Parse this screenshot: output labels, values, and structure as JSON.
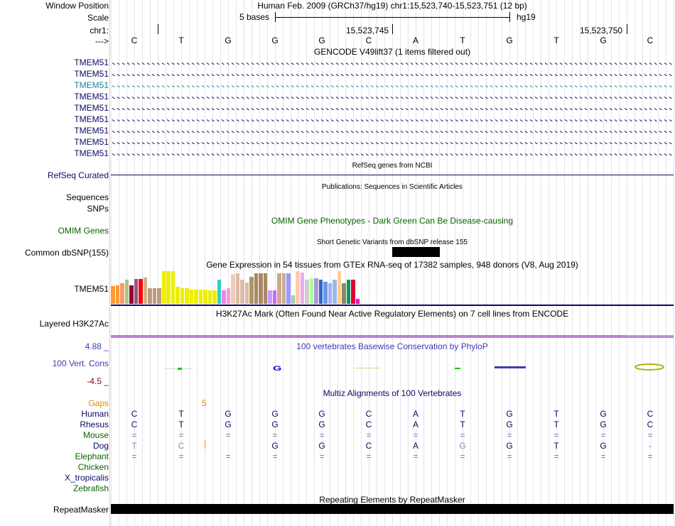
{
  "header": {
    "window_position_label": "Window Position",
    "window_position_value": "Human Feb. 2009 (GRCh37/hg19)   chr1:15,523,740-15,523,751 (12 bp)",
    "scale_label": "Scale",
    "scale_text": "5 bases",
    "scale_assembly": "hg19",
    "chr_label": "chr1:",
    "coord_1": "15,523,745",
    "coord_2": "15,523,750",
    "strand_label": "--->"
  },
  "bases": [
    "C",
    "T",
    "G",
    "G",
    "G",
    "C",
    "A",
    "T",
    "G",
    "T",
    "G",
    "C"
  ],
  "gencode": {
    "title": "GENCODE V49lift37 (1 items filtered out)",
    "rows": [
      {
        "label": "TMEM51",
        "color": "#0a0a64"
      },
      {
        "label": "TMEM51",
        "color": "#0a0a64"
      },
      {
        "label": "TMEM51",
        "color": "#1a7fa0"
      },
      {
        "label": "TMEM51",
        "color": "#0a0a64"
      },
      {
        "label": "TMEM51",
        "color": "#0a0a64"
      },
      {
        "label": "TMEM51",
        "color": "#0a0a64"
      },
      {
        "label": "TMEM51",
        "color": "#0a0a64"
      },
      {
        "label": "TMEM51",
        "color": "#0a0a64"
      },
      {
        "label": "TMEM51",
        "color": "#0a0a64"
      }
    ]
  },
  "refseq": {
    "label": "RefSeq Curated",
    "title": "RefSeq genes from NCBI"
  },
  "publications": {
    "title": "Publications: Sequences in Scientific Articles",
    "label_sequences": "Sequences",
    "label_snps": "SNPs"
  },
  "omim": {
    "label": "OMIM Genes",
    "title": "OMIM Gene Phenotypes - Dark Green Can Be Disease-causing"
  },
  "dbsnp": {
    "label": "Common dbSNP(155)",
    "title": "Short Genetic Variants from dbSNP release 155"
  },
  "gtex": {
    "title": "Gene Expression in 54 tissues from GTEx RNA-seq of 17382 samples, 948 donors (V8, Aug 2019)",
    "label": "TMEM51",
    "bars": [
      {
        "v": 0.52,
        "c": "#ff9933"
      },
      {
        "v": 0.55,
        "c": "#ff9933"
      },
      {
        "v": 0.6,
        "c": "#ff9966"
      },
      {
        "v": 0.7,
        "c": "#a5c88c"
      },
      {
        "v": 0.55,
        "c": "#990033"
      },
      {
        "v": 0.72,
        "c": "#8b5a88"
      },
      {
        "v": 0.72,
        "c": "#ff0000"
      },
      {
        "v": 0.78,
        "c": "#d1b48c"
      },
      {
        "v": 0.45,
        "c": "#c09a7d"
      },
      {
        "v": 0.45,
        "c": "#c09a7d"
      },
      {
        "v": 0.45,
        "c": "#c09a7d"
      },
      {
        "v": 0.95,
        "c": "#eeee00"
      },
      {
        "v": 0.95,
        "c": "#eeee00"
      },
      {
        "v": 0.95,
        "c": "#eeee00"
      },
      {
        "v": 0.5,
        "c": "#eeee00"
      },
      {
        "v": 0.45,
        "c": "#eeee00"
      },
      {
        "v": 0.45,
        "c": "#eeee00"
      },
      {
        "v": 0.42,
        "c": "#eeee00"
      },
      {
        "v": 0.42,
        "c": "#eeee00"
      },
      {
        "v": 0.42,
        "c": "#eeee00"
      },
      {
        "v": 0.42,
        "c": "#eeee00"
      },
      {
        "v": 0.4,
        "c": "#eeee00"
      },
      {
        "v": 0.4,
        "c": "#eeee00"
      },
      {
        "v": 0.7,
        "c": "#33cccc"
      },
      {
        "v": 0.4,
        "c": "#ee82ee"
      },
      {
        "v": 0.45,
        "c": "#ff99cc"
      },
      {
        "v": 0.88,
        "c": "#eeccbb"
      },
      {
        "v": 0.9,
        "c": "#ddbbaa"
      },
      {
        "v": 0.7,
        "c": "#ddbbaa"
      },
      {
        "v": 0.62,
        "c": "#ddbbaa"
      },
      {
        "v": 0.8,
        "c": "#aa9966"
      },
      {
        "v": 0.9,
        "c": "#aa8866"
      },
      {
        "v": 0.9,
        "c": "#aa8866"
      },
      {
        "v": 0.9,
        "c": "#aa8866"
      },
      {
        "v": 0.4,
        "c": "#cc99ff"
      },
      {
        "v": 0.4,
        "c": "#cc66ff"
      },
      {
        "v": 0.9,
        "c": "#ccaa88"
      },
      {
        "v": 0.9,
        "c": "#ccaa99"
      },
      {
        "v": 0.9,
        "c": "#9999ff"
      },
      {
        "v": 0.25,
        "c": "#aaccaa"
      },
      {
        "v": 0.95,
        "c": "#ffccaa"
      },
      {
        "v": 0.92,
        "c": "#eeaaee"
      },
      {
        "v": 0.7,
        "c": "#cccccc"
      },
      {
        "v": 0.75,
        "c": "#aaff99"
      },
      {
        "v": 0.75,
        "c": "#aa99dd"
      },
      {
        "v": 0.7,
        "c": "#3366cc"
      },
      {
        "v": 0.65,
        "c": "#6699dd"
      },
      {
        "v": 0.6,
        "c": "#aaaaff"
      },
      {
        "v": 0.7,
        "c": "#99bbdd"
      },
      {
        "v": 0.95,
        "c": "#ffcc99"
      },
      {
        "v": 0.6,
        "c": "#888866"
      },
      {
        "v": 0.7,
        "c": "#009966"
      },
      {
        "v": 0.7,
        "c": "#dd0033"
      },
      {
        "v": 0.15,
        "c": "#ff00cc"
      }
    ]
  },
  "h3k27ac": {
    "label": "Layered H3K27Ac",
    "title": "H3K27Ac Mark (Often Found Near Active Regulatory Elements) on 7 cell lines from ENCODE"
  },
  "phylop": {
    "label": "100 Vert. Cons",
    "title": "100 vertebrates Basewise Conservation by PhyloP",
    "max": "4.88 _",
    "min": "-4.5 _"
  },
  "multiz": {
    "title": "Multiz Alignments of 100 Vertebrates",
    "gaps_label": "Gaps",
    "gap_value": "5",
    "species": [
      {
        "name": "Human",
        "color": "#0a0a64",
        "seq": [
          "C",
          "T",
          "G",
          "G",
          "G",
          "C",
          "A",
          "T",
          "G",
          "T",
          "G",
          "C"
        ]
      },
      {
        "name": "Rhesus",
        "color": "#0a0a64",
        "seq": [
          "C",
          "T",
          "G",
          "G",
          "G",
          "C",
          "A",
          "T",
          "G",
          "T",
          "G",
          "C"
        ]
      },
      {
        "name": "Mouse",
        "color": "#0a6400",
        "seq": [
          "=",
          "=",
          "=",
          "=",
          "=",
          "=",
          "=",
          "=",
          "=",
          "=",
          "=",
          "="
        ]
      },
      {
        "name": "Dog",
        "color": "#0a0a64",
        "seq": [
          "T",
          "C",
          "",
          "G",
          "G",
          "C",
          "A",
          "G",
          "G",
          "T",
          "G",
          "-"
        ]
      },
      {
        "name": "Elephant",
        "color": "#0a6400",
        "seq": [
          "=",
          "=",
          "=",
          "=",
          "=",
          "=",
          "=",
          "=",
          "=",
          "=",
          "=",
          "="
        ]
      },
      {
        "name": "Chicken",
        "color": "#0a6400",
        "seq": []
      },
      {
        "name": "X_tropicalis",
        "color": "#0a0a64",
        "seq": []
      },
      {
        "name": "Zebrafish",
        "color": "#0a6400",
        "seq": []
      }
    ]
  },
  "repeatmasker": {
    "label": "RepeatMasker",
    "title": "Repeating Elements by RepeatMasker"
  }
}
